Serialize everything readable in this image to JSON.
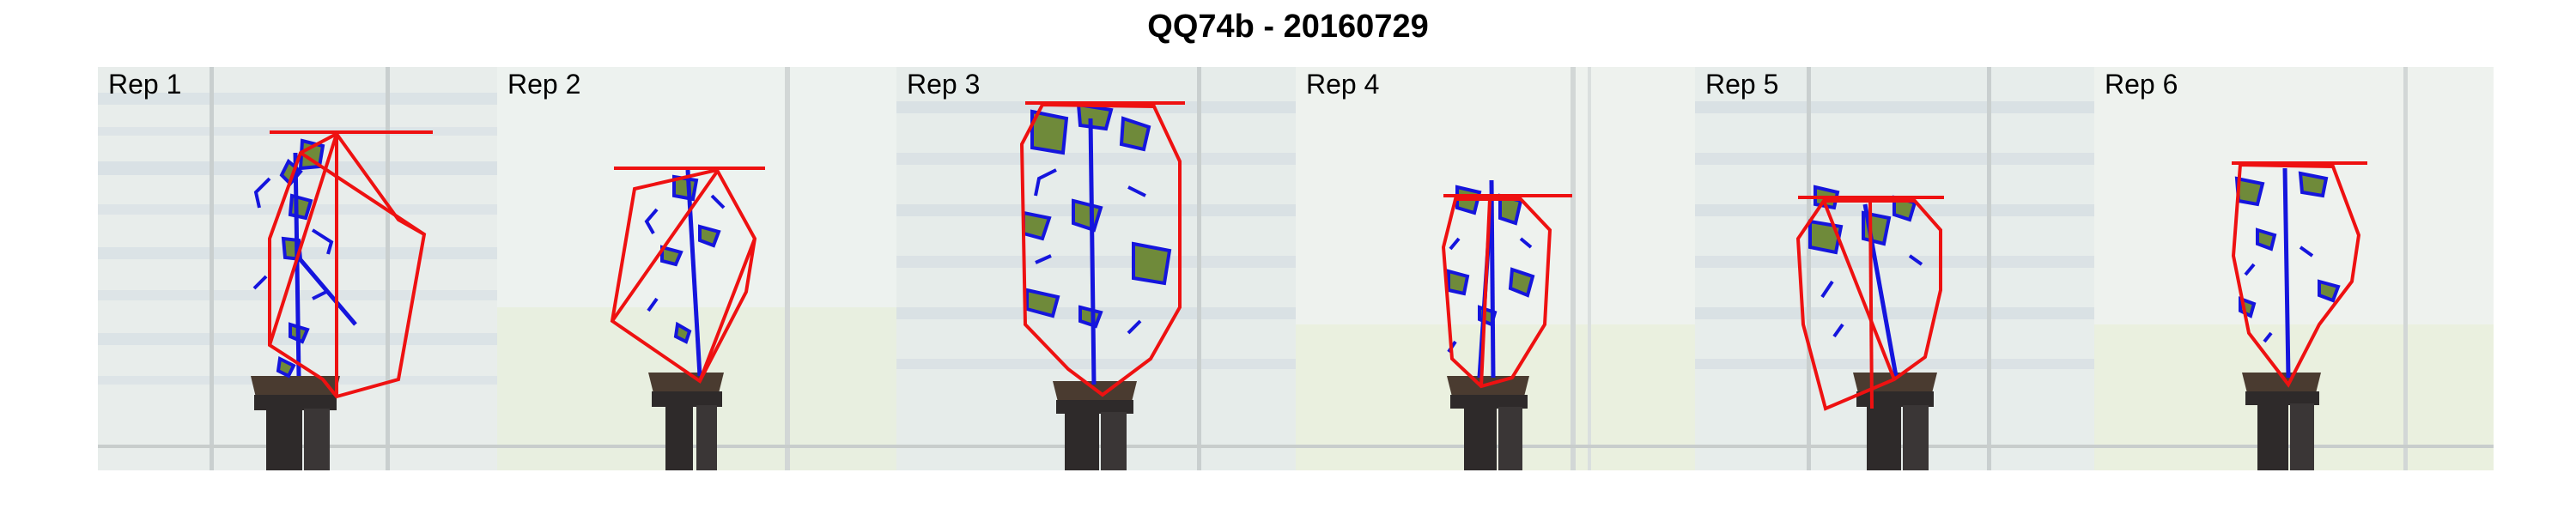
{
  "figure": {
    "title": "QQ74b - 20160729"
  },
  "panels": [
    {
      "label": "Rep 1"
    },
    {
      "label": "Rep 2"
    },
    {
      "label": "Rep 3"
    },
    {
      "label": "Rep 4"
    },
    {
      "label": "Rep 5"
    },
    {
      "label": "Rep 6"
    }
  ],
  "colors": {
    "hull_line": "#ee1111",
    "contour": "#1515dd",
    "leaf_fill": "#6f8a3a",
    "pot": "#2e2a2a",
    "background": "#e9eeec"
  }
}
